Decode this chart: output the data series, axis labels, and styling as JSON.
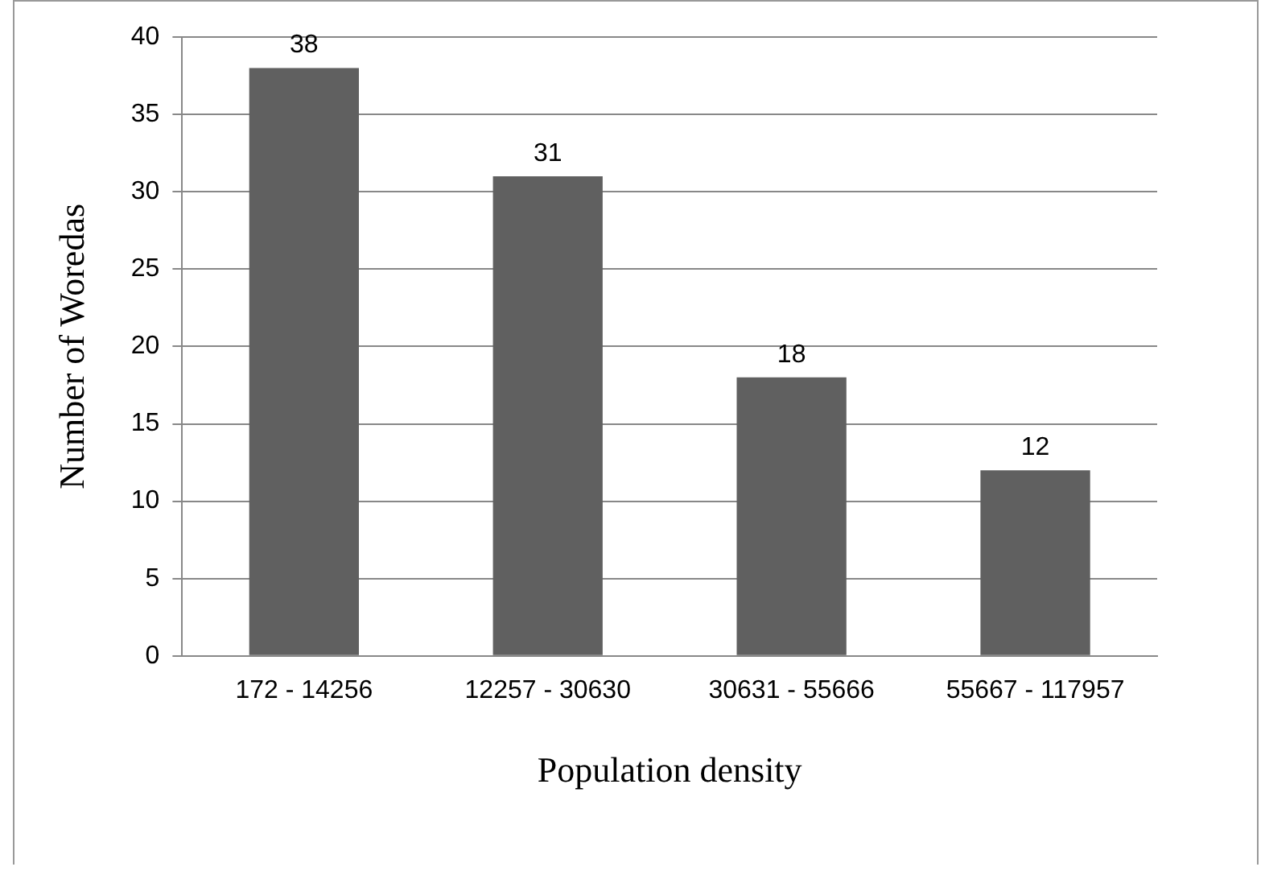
{
  "chart_data": {
    "type": "bar",
    "xlabel": "Population density",
    "ylabel": "Number of Woredas",
    "categories": [
      "172 - 14256",
      "12257 - 30630",
      "30631 - 55666",
      "55667 - 117957"
    ],
    "values": [
      38,
      31,
      18,
      12
    ],
    "color": "#606060",
    "ylim": [
      0,
      40
    ],
    "yticks": [
      0,
      5,
      10,
      15,
      20,
      25,
      30,
      35,
      40
    ],
    "grid": "y",
    "data_labels": true,
    "legend": false
  }
}
